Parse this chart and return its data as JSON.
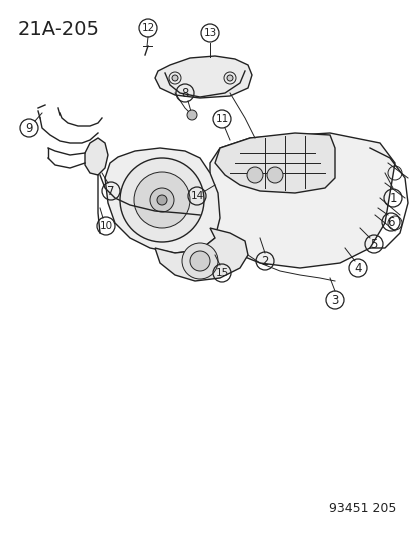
{
  "title": "21A-205",
  "watermark": "93451 205",
  "bg_color": "#ffffff",
  "line_color": "#222222",
  "callout_color": "#222222",
  "title_fontsize": 14,
  "callout_fontsize": 8.5,
  "watermark_fontsize": 9
}
